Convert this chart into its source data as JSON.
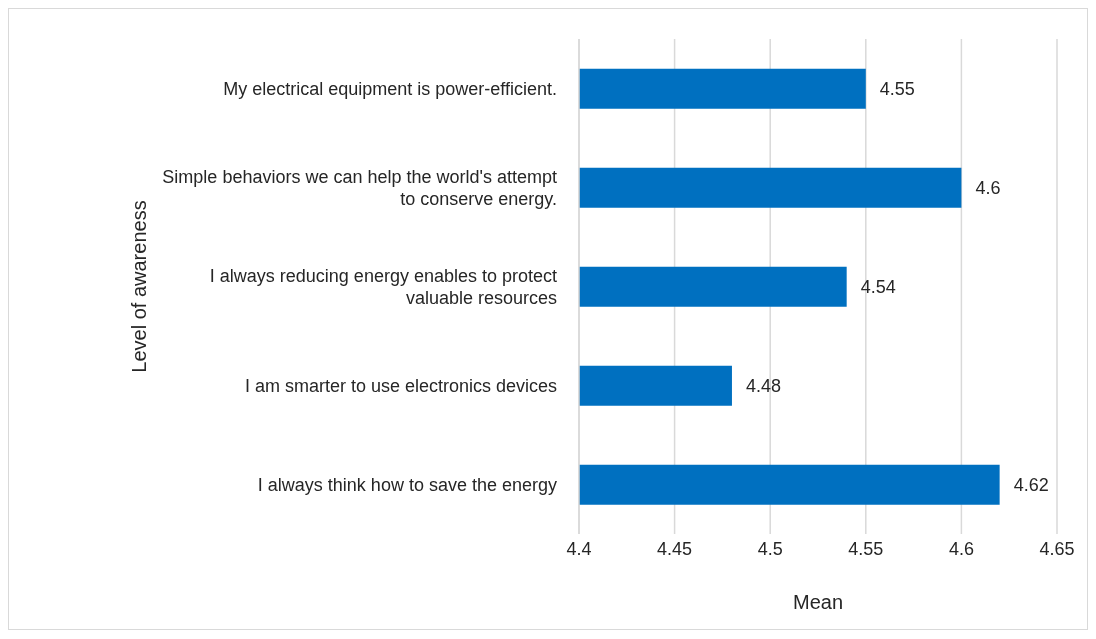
{
  "chart_data": {
    "type": "bar",
    "orientation": "horizontal",
    "categories": [
      "My electrical equipment is power-efficient.",
      "Simple behaviors we can help the world's attempt to conserve energy.",
      "I always reducing energy enables to protect valuable resources",
      "I am smarter to use electronics devices",
      "I always think how to save the energy"
    ],
    "values": [
      4.55,
      4.6,
      4.54,
      4.48,
      4.62
    ],
    "color": "#0070c0",
    "xlim": [
      4.4,
      4.65
    ],
    "xticks": [
      4.4,
      4.45,
      4.5,
      4.55,
      4.6,
      4.65
    ],
    "xlabel": "Mean",
    "ylabel": "Level of awareness",
    "grid": "x",
    "data_labels": true
  }
}
